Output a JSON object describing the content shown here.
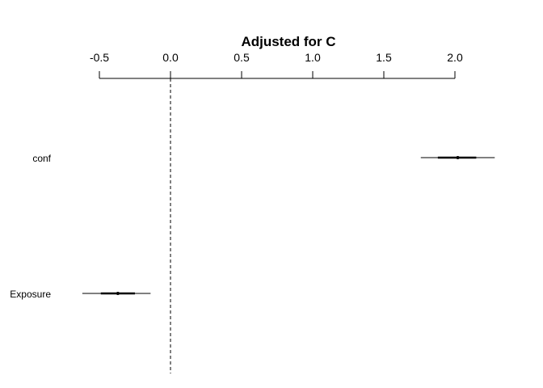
{
  "chart_data": {
    "type": "forest",
    "title": "Adjusted for C",
    "xlabel": "",
    "ylabel": "",
    "axis_position": "top",
    "xlim": [
      -0.5,
      2.2
    ],
    "ticks": [
      -0.5,
      0.0,
      0.5,
      1.0,
      1.5,
      2.0
    ],
    "tick_labels": [
      "-0.5",
      "0.0",
      "0.5",
      "1.0",
      "1.5",
      "2.0"
    ],
    "reference_line": 0.0,
    "rows": [
      {
        "label": "conf",
        "estimate": 2.02,
        "inner": [
          1.88,
          2.15
        ],
        "outer": [
          1.76,
          2.28
        ]
      },
      {
        "label": "Exposure",
        "estimate": -0.37,
        "inner": [
          -0.49,
          -0.25
        ],
        "outer": [
          -0.62,
          -0.14
        ]
      }
    ]
  }
}
